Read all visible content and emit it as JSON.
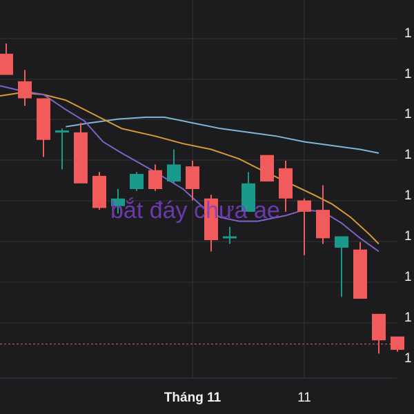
{
  "chart_data": {
    "type": "candlestick",
    "colors": {
      "background": "#1c1c1e",
      "up": "#1a9a8a",
      "down": "#f15b5b",
      "ma_short": "#7c63c7",
      "ma_mid": "#d89a35",
      "ma_long": "#7fb6d8",
      "last_price_line": "#f15b5b",
      "annotation": "#7b3fc4"
    },
    "y_ticks": [
      "1",
      "1",
      "1",
      "1",
      "1",
      "1",
      "1",
      "1",
      "1"
    ],
    "x_labels": [
      {
        "label": "Tháng 11",
        "index": 10,
        "bold": true
      },
      {
        "label": "11",
        "index": 16,
        "bold": false
      }
    ],
    "annotation": "bắt đáy chưa ae",
    "candles": [
      {
        "open": 55.8,
        "close": 50.2,
        "high": 58.5,
        "low": 50.2
      },
      {
        "open": 48.5,
        "close": 44.0,
        "high": 51.5,
        "low": 42.0
      },
      {
        "open": 44.0,
        "close": 33.0,
        "high": 44.0,
        "low": 28.5
      },
      {
        "open": 35.3,
        "close": 35.5,
        "high": 36.0,
        "low": 25.2
      },
      {
        "open": 35.0,
        "close": 21.5,
        "high": 37.5,
        "low": 21.5
      },
      {
        "open": 23.5,
        "close": 15.0,
        "high": 24.5,
        "low": 14.5
      },
      {
        "open": 15.5,
        "close": 17.5,
        "high": 20.0,
        "low": 13.5
      },
      {
        "open": 20.0,
        "close": 24.0,
        "high": 24.5,
        "low": 19.5
      },
      {
        "open": 25.0,
        "close": 20.0,
        "high": 26.5,
        "low": 19.5
      },
      {
        "open": 22.0,
        "close": 26.5,
        "high": 30.5,
        "low": 21.5
      },
      {
        "open": 26.0,
        "close": 20.0,
        "high": 27.5,
        "low": 17.0
      },
      {
        "open": 17.5,
        "close": 6.5,
        "high": 18.5,
        "low": 3.5
      },
      {
        "open": 7.0,
        "close": 7.5,
        "high": 10.0,
        "low": 5.5
      },
      {
        "open": 14.0,
        "close": 21.5,
        "high": 24.5,
        "low": 14.0
      },
      {
        "open": 29.0,
        "close": 22.0,
        "high": 29.0,
        "low": 22.0
      },
      {
        "open": 25.5,
        "close": 17.5,
        "high": 27.5,
        "low": 14.0
      },
      {
        "open": 17.0,
        "close": 14.0,
        "high": 17.5,
        "low": 2.5
      },
      {
        "open": 14.5,
        "close": 7.0,
        "high": 21.0,
        "low": 5.5
      },
      {
        "open": 4.5,
        "close": 7.5,
        "high": 7.5,
        "low": -8.5
      },
      {
        "open": 4.0,
        "close": -9.0,
        "high": 6.0,
        "low": -9.0
      },
      {
        "open": -13.0,
        "close": -20.0,
        "high": -13.0,
        "low": -23.5
      },
      {
        "open": -19.0,
        "close": -22.5,
        "high": -19.0,
        "low": -23.0
      }
    ],
    "ma_short": [
      [
        -0.5,
        47.5
      ],
      [
        0.8,
        46.0
      ],
      [
        2.0,
        45.0
      ],
      [
        3.2,
        41.0
      ],
      [
        4.2,
        38.0
      ],
      [
        5.2,
        32.5
      ],
      [
        6.2,
        29.5
      ],
      [
        8.0,
        24.5
      ],
      [
        9.5,
        20.0
      ],
      [
        10.5,
        15.5
      ],
      [
        11.5,
        12.5
      ],
      [
        12.5,
        11.5
      ],
      [
        13.5,
        11.5
      ],
      [
        15.0,
        13.0
      ],
      [
        16.0,
        14.5
      ],
      [
        17.0,
        14.0
      ],
      [
        18.0,
        11.0
      ],
      [
        19.0,
        7.0
      ],
      [
        20.0,
        3.5
      ]
    ],
    "ma_mid": [
      [
        -0.5,
        44.5
      ],
      [
        0.8,
        45.5
      ],
      [
        2.0,
        45.0
      ],
      [
        3.2,
        43.5
      ],
      [
        4.2,
        41.0
      ],
      [
        5.2,
        38.5
      ],
      [
        6.2,
        36.0
      ],
      [
        8.0,
        34.0
      ],
      [
        9.5,
        32.0
      ],
      [
        11.0,
        30.5
      ],
      [
        12.5,
        28.0
      ],
      [
        13.5,
        25.5
      ],
      [
        15.0,
        22.0
      ],
      [
        16.5,
        18.5
      ],
      [
        17.5,
        16.0
      ],
      [
        18.5,
        12.5
      ],
      [
        19.5,
        8.0
      ],
      [
        20.0,
        5.5
      ]
    ],
    "ma_long": [
      [
        3.2,
        36.5
      ],
      [
        4.5,
        37.5
      ],
      [
        6.0,
        38.5
      ],
      [
        7.5,
        39.0
      ],
      [
        8.5,
        39.0
      ],
      [
        10.0,
        37.5
      ],
      [
        11.5,
        36.0
      ],
      [
        13.0,
        35.0
      ],
      [
        14.5,
        34.0
      ],
      [
        16.0,
        32.5
      ],
      [
        17.5,
        31.5
      ],
      [
        19.0,
        30.5
      ],
      [
        20.0,
        29.5
      ]
    ],
    "last_price": -21.0,
    "ylim": [
      -30,
      70
    ],
    "grid": true,
    "legend": "none"
  }
}
